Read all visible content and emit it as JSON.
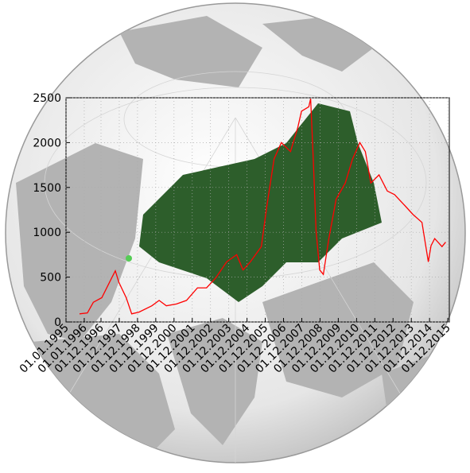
{
  "chart_data": {
    "type": "line",
    "x": [
      1995.74,
      1996.17,
      1996.5,
      1996.96,
      1997.5,
      1997.7,
      1997.9,
      1998.3,
      1998.6,
      1999.0,
      1999.7,
      2000.1,
      2000.5,
      2001.05,
      2001.6,
      2002.2,
      2002.7,
      2003.2,
      2003.8,
      2004.35,
      2004.7,
      2005.1,
      2005.7,
      2006.0,
      2006.4,
      2006.8,
      2007.3,
      2007.7,
      2007.9,
      2008.3,
      2008.4,
      2008.55,
      2008.7,
      2008.9,
      2009.1,
      2009.4,
      2009.8,
      2010.3,
      2010.7,
      2011.1,
      2011.4,
      2011.7,
      2012.15,
      2012.6,
      2013.0,
      2013.6,
      2014.0,
      2014.5,
      2014.85,
      2015.0,
      2015.2,
      2015.6,
      2015.8
    ],
    "values": [
      90,
      100,
      220,
      270,
      490,
      570,
      440,
      270,
      90,
      110,
      180,
      240,
      180,
      200,
      240,
      380,
      380,
      490,
      670,
      750,
      580,
      670,
      840,
      1290,
      1820,
      2000,
      1900,
      2170,
      2350,
      2400,
      2490,
      1800,
      1020,
      580,
      530,
      930,
      1370,
      1550,
      1820,
      2000,
      1900,
      1550,
      1640,
      1460,
      1420,
      1290,
      1200,
      1110,
      670,
      850,
      930,
      840,
      890
    ],
    "color": "#ff0000",
    "xlim": [
      1995,
      2016
    ],
    "xticks": [
      {
        "value": 1995.0,
        "label": "01.01.1995"
      },
      {
        "value": 1996.0,
        "label": "01.01.1996"
      },
      {
        "value": 1996.917,
        "label": "01.12.1996"
      },
      {
        "value": 1997.917,
        "label": "01.12.1997"
      },
      {
        "value": 1998.917,
        "label": "01.12.1998"
      },
      {
        "value": 1999.917,
        "label": "01.12.1999"
      },
      {
        "value": 2000.917,
        "label": "01.12.2000"
      },
      {
        "value": 2001.917,
        "label": "01.12.2001"
      },
      {
        "value": 2002.917,
        "label": "01.12.2002"
      },
      {
        "value": 2003.917,
        "label": "01.12.2003"
      },
      {
        "value": 2004.917,
        "label": "01.12.2004"
      },
      {
        "value": 2005.917,
        "label": "01.12.2005"
      },
      {
        "value": 2006.917,
        "label": "01.12.2006"
      },
      {
        "value": 2007.917,
        "label": "01.12.2007"
      },
      {
        "value": 2008.917,
        "label": "01.12.2008"
      },
      {
        "value": 2009.917,
        "label": "01.12.2009"
      },
      {
        "value": 2010.917,
        "label": "01.12.2010"
      },
      {
        "value": 2011.917,
        "label": "01.12.2011"
      },
      {
        "value": 2012.917,
        "label": "01.12.2012"
      },
      {
        "value": 2013.917,
        "label": "01.12.2013"
      },
      {
        "value": 2014.917,
        "label": "01.12.2014"
      },
      {
        "value": 2015.917,
        "label": "01.12.2015"
      }
    ],
    "ylim": [
      0,
      2500
    ],
    "yticks": [
      0,
      500,
      1000,
      1500,
      2000,
      2500
    ],
    "grid": true
  }
}
